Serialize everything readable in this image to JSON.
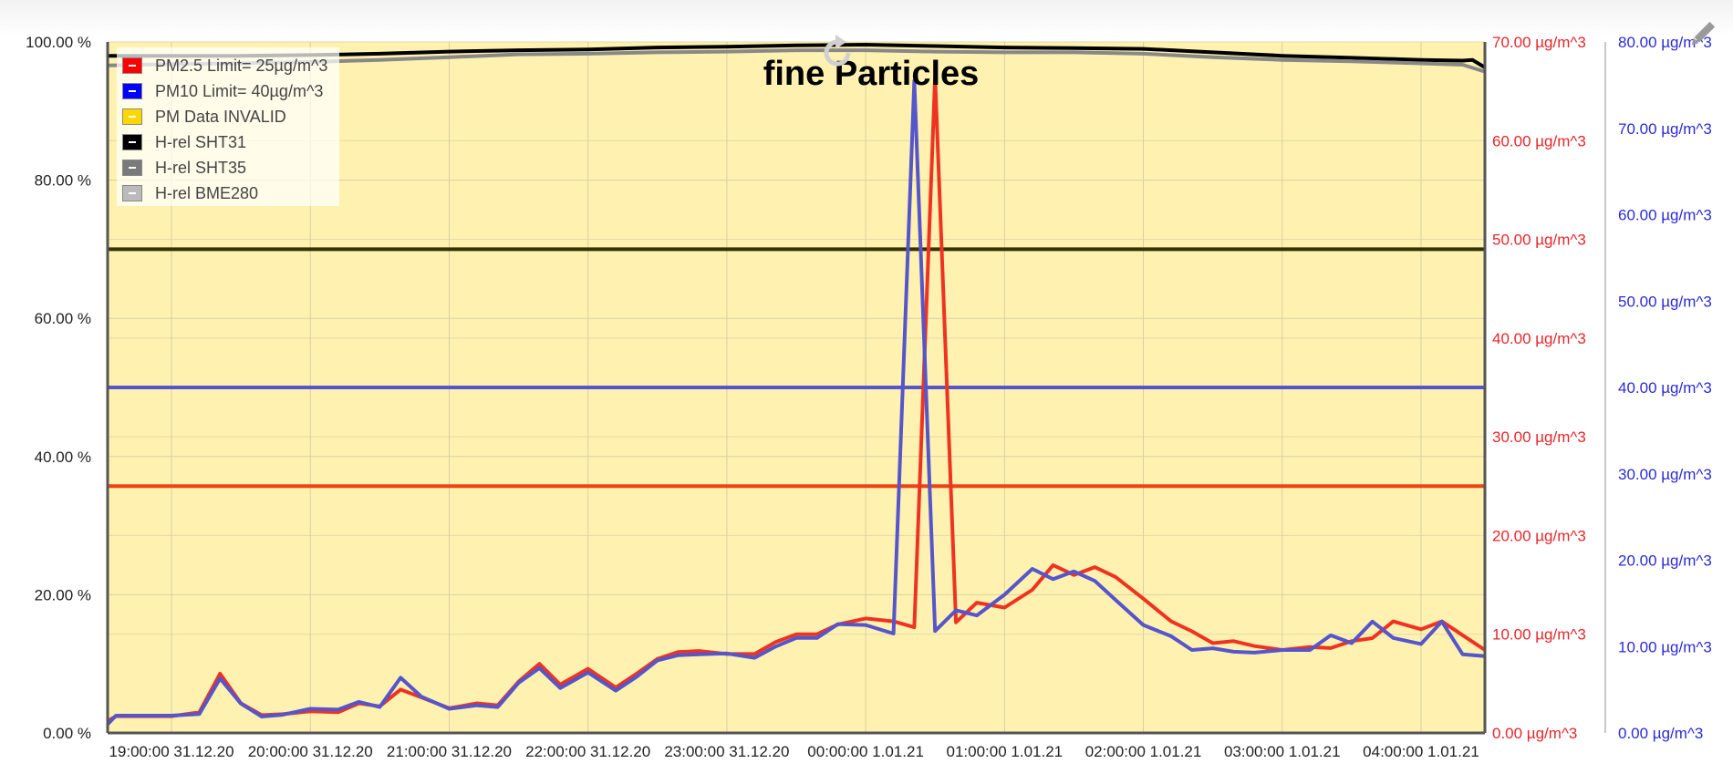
{
  "chart_data": {
    "type": "line",
    "title": "fine Particles",
    "legend_position": "top-left",
    "grid": true,
    "background_band": {
      "name": "PM Data INVALID",
      "color": "#fff2b0"
    },
    "x": {
      "tick_labels": [
        "19:00:00 31.12.20",
        "20:00:00 31.12.20",
        "21:00:00 31.12.20",
        "22:00:00 31.12.20",
        "23:00:00 31.12.20",
        "00:00:00 1.01.21",
        "01:00:00 1.01.21",
        "02:00:00 1.01.21",
        "03:00:00 1.01.21",
        "04:00:00 1.01.21"
      ],
      "range_hours": [
        -5.46,
        4.46
      ],
      "tick_hours": [
        -5,
        -4,
        -3,
        -2,
        -1,
        0,
        1,
        2,
        3,
        4
      ]
    },
    "axes": {
      "left": {
        "ylim": [
          0,
          100
        ],
        "ticks": [
          "0.00 %",
          "20.00 %",
          "40.00 %",
          "60.00 %",
          "80.00 %",
          "100.00 %"
        ],
        "values": [
          0,
          20,
          40,
          60,
          80,
          100
        ]
      },
      "right_red": {
        "ylim": [
          0,
          70
        ],
        "ticks": [
          "0.00 µg/m^3",
          "10.00 µg/m^3",
          "20.00 µg/m^3",
          "30.00 µg/m^3",
          "40.00 µg/m^3",
          "50.00 µg/m^3",
          "60.00 µg/m^3",
          "70.00 µg/m^3"
        ],
        "values": [
          0,
          10,
          20,
          30,
          40,
          50,
          60,
          70
        ],
        "color": "#e8262a"
      },
      "right_blue": {
        "ylim": [
          0,
          80
        ],
        "ticks": [
          "0.00 µg/m^3",
          "10.00 µg/m^3",
          "20.00 µg/m^3",
          "30.00 µg/m^3",
          "40.00 µg/m^3",
          "50.00 µg/m^3",
          "60.00 µg/m^3",
          "70.00 µg/m^3",
          "80.00 µg/m^3"
        ],
        "values": [
          0,
          10,
          20,
          30,
          40,
          50,
          60,
          70,
          80
        ],
        "color": "#2b2bd9"
      }
    },
    "legend": [
      {
        "label": "PM2.5 Limit= 25µg/m^3",
        "color": "#ff0000"
      },
      {
        "label": "PM10 Limit= 40µg/m^3",
        "color": "#0000ff"
      },
      {
        "label": "PM Data INVALID",
        "color": "#ffd700"
      },
      {
        "label": "H-rel SHT31",
        "color": "#000000"
      },
      {
        "label": "H-rel SHT35",
        "color": "#7a7a7a"
      },
      {
        "label": "H-rel BME280",
        "color": "#bbbbbb"
      }
    ],
    "limit_lines": [
      {
        "axis": "right_red",
        "value": 25,
        "color": "#ee4411"
      },
      {
        "axis": "right_blue",
        "value": 40,
        "color": "#5555cc"
      },
      {
        "axis": "left",
        "value": 70,
        "color": "#333300"
      }
    ],
    "series": [
      {
        "axis": "left",
        "color": "#000000",
        "x": [
          -5.46,
          -5.0,
          -4.5,
          -4.0,
          -3.5,
          -3.0,
          -2.5,
          -2.0,
          -1.5,
          -1.0,
          -0.5,
          0.0,
          0.5,
          1.0,
          1.5,
          2.0,
          2.5,
          3.0,
          3.5,
          4.0,
          4.3,
          4.37,
          4.46
        ],
        "y": [
          98.0,
          98.0,
          98.0,
          98.1,
          98.3,
          98.6,
          98.8,
          98.9,
          99.2,
          99.3,
          99.5,
          99.6,
          99.4,
          99.2,
          99.1,
          99.0,
          98.5,
          98.0,
          97.7,
          97.4,
          97.3,
          97.4,
          96.3
        ]
      },
      {
        "axis": "left",
        "color": "#888888",
        "x": [
          -5.46,
          -5.0,
          -4.5,
          -4.0,
          -3.5,
          -3.0,
          -2.5,
          -2.0,
          -1.5,
          -1.0,
          -0.5,
          0.0,
          0.5,
          1.0,
          1.5,
          2.0,
          2.5,
          3.0,
          3.5,
          4.0,
          4.3,
          4.46
        ],
        "y": [
          96.6,
          96.8,
          96.9,
          97.1,
          97.4,
          97.8,
          98.2,
          98.3,
          98.5,
          98.6,
          98.8,
          98.8,
          98.6,
          98.5,
          98.5,
          98.3,
          97.8,
          97.4,
          97.2,
          96.9,
          96.7,
          95.7
        ]
      },
      {
        "axis": "right_red",
        "color": "#ee3322",
        "x": [
          -5.46,
          -5.4,
          -5.0,
          -4.8,
          -4.65,
          -4.5,
          -4.35,
          -4.2,
          -4.0,
          -3.8,
          -3.65,
          -3.5,
          -3.35,
          -3.2,
          -3.0,
          -2.8,
          -2.65,
          -2.5,
          -2.35,
          -2.2,
          -2.0,
          -1.8,
          -1.65,
          -1.5,
          -1.35,
          -1.2,
          -1.0,
          -0.8,
          -0.65,
          -0.5,
          -0.35,
          -0.2,
          -0.0,
          0.2,
          0.35,
          0.5,
          0.65,
          0.8,
          1.0,
          1.2,
          1.35,
          1.5,
          1.65,
          1.8,
          2.0,
          2.2,
          2.35,
          2.5,
          2.65,
          2.8,
          3.0,
          3.2,
          3.35,
          3.5,
          3.65,
          3.8,
          4.0,
          4.15,
          4.3,
          4.46
        ],
        "y": [
          1.2,
          1.7,
          1.7,
          2.1,
          6.0,
          3.0,
          1.8,
          1.9,
          2.2,
          2.1,
          3.0,
          2.7,
          4.4,
          3.6,
          2.5,
          3.0,
          2.8,
          5.2,
          7.0,
          4.9,
          6.5,
          4.6,
          6.0,
          7.5,
          8.2,
          8.3,
          8.0,
          8.0,
          9.2,
          10.0,
          10.0,
          11.0,
          11.6,
          11.3,
          10.7,
          66.5,
          11.2,
          13.2,
          12.7,
          14.5,
          17.0,
          16.0,
          16.8,
          15.8,
          13.6,
          11.3,
          10.3,
          9.1,
          9.3,
          8.8,
          8.4,
          8.7,
          8.6,
          9.3,
          9.6,
          11.3,
          10.5,
          11.3,
          9.9,
          8.4
        ]
      },
      {
        "axis": "right_blue",
        "color": "#5555cc",
        "x": [
          -5.46,
          -5.4,
          -5.0,
          -4.8,
          -4.65,
          -4.5,
          -4.35,
          -4.2,
          -4.0,
          -3.8,
          -3.65,
          -3.5,
          -3.35,
          -3.2,
          -3.0,
          -2.8,
          -2.65,
          -2.5,
          -2.35,
          -2.2,
          -2.0,
          -1.8,
          -1.65,
          -1.5,
          -1.35,
          -1.2,
          -1.0,
          -0.8,
          -0.65,
          -0.5,
          -0.35,
          -0.2,
          -0.0,
          0.2,
          0.35,
          0.5,
          0.65,
          0.8,
          1.0,
          1.2,
          1.35,
          1.5,
          1.65,
          1.8,
          2.0,
          2.2,
          2.35,
          2.5,
          2.65,
          2.8,
          3.0,
          3.2,
          3.35,
          3.5,
          3.65,
          3.8,
          4.0,
          4.15,
          4.3,
          4.46
        ],
        "y": [
          1.0,
          2.0,
          2.0,
          2.2,
          6.3,
          3.4,
          1.9,
          2.1,
          2.8,
          2.7,
          3.6,
          3.0,
          6.4,
          4.2,
          2.8,
          3.2,
          3.0,
          5.8,
          7.5,
          5.2,
          7.0,
          4.9,
          6.5,
          8.4,
          9.0,
          9.1,
          9.2,
          8.7,
          10.0,
          11.0,
          11.0,
          12.6,
          12.5,
          11.5,
          75.5,
          11.8,
          14.2,
          13.6,
          16.0,
          19.0,
          17.8,
          18.7,
          17.6,
          15.4,
          12.5,
          11.2,
          9.6,
          9.8,
          9.4,
          9.3,
          9.6,
          9.6,
          11.3,
          10.4,
          12.9,
          11.0,
          10.3,
          12.9,
          9.1,
          8.9
        ]
      }
    ]
  }
}
